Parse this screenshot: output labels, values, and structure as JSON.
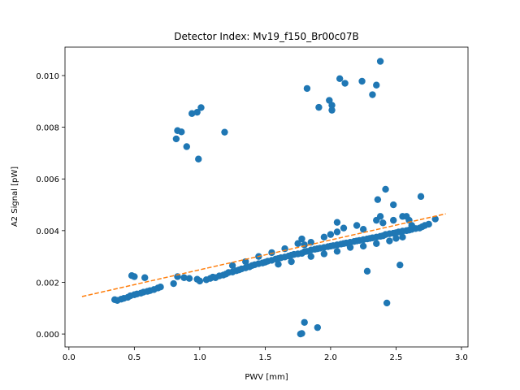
{
  "chart_data": {
    "type": "scatter",
    "title": "Detector Index: Mv19_f150_Br00c07B",
    "xlabel": "PWV [mm]",
    "ylabel": "A2 Signal [pW]",
    "xlim": [
      -0.03,
      3.05
    ],
    "ylim": [
      -0.0005,
      0.0111
    ],
    "xticks": [
      0.0,
      0.5,
      1.0,
      1.5,
      2.0,
      2.5,
      3.0
    ],
    "xtick_labels": [
      "0.0",
      "0.5",
      "1.0",
      "1.5",
      "2.0",
      "2.5",
      "3.0"
    ],
    "yticks": [
      0.0,
      0.002,
      0.004,
      0.006,
      0.008,
      0.01
    ],
    "ytick_labels": [
      "0.000",
      "0.002",
      "0.004",
      "0.006",
      "0.008",
      "0.010"
    ],
    "grid": false,
    "series": [
      {
        "name": "data",
        "kind": "scatter",
        "color": "#1f77b4",
        "points": [
          [
            0.35,
            0.00133
          ],
          [
            0.37,
            0.0013
          ],
          [
            0.4,
            0.00135
          ],
          [
            0.42,
            0.00138
          ],
          [
            0.45,
            0.00142
          ],
          [
            0.47,
            0.00148
          ],
          [
            0.5,
            0.00152
          ],
          [
            0.52,
            0.00155
          ],
          [
            0.55,
            0.00158
          ],
          [
            0.57,
            0.00162
          ],
          [
            0.6,
            0.00165
          ],
          [
            0.62,
            0.00168
          ],
          [
            0.65,
            0.00172
          ],
          [
            0.68,
            0.00178
          ],
          [
            0.7,
            0.00182
          ],
          [
            0.48,
            0.00226
          ],
          [
            0.5,
            0.00222
          ],
          [
            0.58,
            0.00218
          ],
          [
            0.83,
            0.00222
          ],
          [
            0.88,
            0.00218
          ],
          [
            0.92,
            0.00215
          ],
          [
            0.98,
            0.00212
          ],
          [
            1.0,
            0.00205
          ],
          [
            0.8,
            0.00195
          ],
          [
            1.05,
            0.0021
          ],
          [
            1.08,
            0.00215
          ],
          [
            1.1,
            0.0022
          ],
          [
            1.12,
            0.00218
          ],
          [
            1.15,
            0.00225
          ],
          [
            1.18,
            0.00228
          ],
          [
            1.2,
            0.00232
          ],
          [
            1.22,
            0.00238
          ],
          [
            1.25,
            0.0024
          ],
          [
            1.28,
            0.00245
          ],
          [
            1.3,
            0.00248
          ],
          [
            1.32,
            0.00252
          ],
          [
            1.35,
            0.00256
          ],
          [
            1.38,
            0.0026
          ],
          [
            1.4,
            0.00265
          ],
          [
            1.42,
            0.00268
          ],
          [
            1.45,
            0.00272
          ],
          [
            1.48,
            0.00275
          ],
          [
            1.5,
            0.00278
          ],
          [
            1.52,
            0.00282
          ],
          [
            1.55,
            0.00285
          ],
          [
            1.58,
            0.0029
          ],
          [
            1.6,
            0.00292
          ],
          [
            1.62,
            0.00295
          ],
          [
            1.65,
            0.00298
          ],
          [
            1.68,
            0.00302
          ],
          [
            1.7,
            0.00305
          ],
          [
            1.72,
            0.00308
          ],
          [
            1.75,
            0.0031
          ],
          [
            1.78,
            0.00312
          ],
          [
            1.8,
            0.00318
          ],
          [
            1.82,
            0.0032
          ],
          [
            1.85,
            0.00325
          ],
          [
            1.88,
            0.00328
          ],
          [
            1.9,
            0.0033
          ],
          [
            1.92,
            0.00332
          ],
          [
            1.95,
            0.00335
          ],
          [
            1.98,
            0.00338
          ],
          [
            2.0,
            0.0034
          ],
          [
            2.02,
            0.00342
          ],
          [
            2.05,
            0.00345
          ],
          [
            2.08,
            0.00348
          ],
          [
            2.1,
            0.0035
          ],
          [
            2.12,
            0.00352
          ],
          [
            2.15,
            0.00355
          ],
          [
            2.18,
            0.00358
          ],
          [
            2.2,
            0.0036
          ],
          [
            2.22,
            0.00362
          ],
          [
            2.25,
            0.00365
          ],
          [
            2.28,
            0.00368
          ],
          [
            2.3,
            0.0037
          ],
          [
            2.32,
            0.00372
          ],
          [
            2.35,
            0.00375
          ],
          [
            2.38,
            0.00378
          ],
          [
            2.4,
            0.0038
          ],
          [
            2.42,
            0.00385
          ],
          [
            2.45,
            0.00388
          ],
          [
            2.48,
            0.0039
          ],
          [
            2.5,
            0.00392
          ],
          [
            2.52,
            0.00395
          ],
          [
            2.55,
            0.00398
          ],
          [
            2.58,
            0.004
          ],
          [
            2.6,
            0.00402
          ],
          [
            2.62,
            0.00405
          ],
          [
            2.65,
            0.00408
          ],
          [
            2.68,
            0.0041
          ],
          [
            2.7,
            0.00415
          ],
          [
            2.72,
            0.0042
          ],
          [
            2.75,
            0.00425
          ],
          [
            2.8,
            0.00445
          ],
          [
            1.25,
            0.00265
          ],
          [
            1.35,
            0.0028
          ],
          [
            1.45,
            0.003
          ],
          [
            1.55,
            0.00315
          ],
          [
            1.65,
            0.0033
          ],
          [
            1.75,
            0.0035
          ],
          [
            1.78,
            0.00368
          ],
          [
            1.8,
            0.00345
          ],
          [
            1.85,
            0.00355
          ],
          [
            1.95,
            0.00375
          ],
          [
            2.0,
            0.00385
          ],
          [
            2.05,
            0.00395
          ],
          [
            2.05,
            0.00432
          ],
          [
            2.1,
            0.0041
          ],
          [
            2.2,
            0.0042
          ],
          [
            2.25,
            0.00405
          ],
          [
            2.35,
            0.0044
          ],
          [
            2.38,
            0.00455
          ],
          [
            2.4,
            0.0043
          ],
          [
            2.48,
            0.0044
          ],
          [
            2.55,
            0.00455
          ],
          [
            2.6,
            0.0044
          ],
          [
            2.62,
            0.0042
          ],
          [
            1.6,
            0.0027
          ],
          [
            1.7,
            0.0028
          ],
          [
            1.85,
            0.003
          ],
          [
            1.95,
            0.0031
          ],
          [
            2.05,
            0.0032
          ],
          [
            2.15,
            0.00335
          ],
          [
            2.25,
            0.0034
          ],
          [
            2.35,
            0.0035
          ],
          [
            2.45,
            0.0036
          ],
          [
            2.5,
            0.0037
          ],
          [
            2.55,
            0.00375
          ],
          [
            2.36,
            0.0052
          ],
          [
            2.42,
            0.0056
          ],
          [
            2.48,
            0.005
          ],
          [
            2.58,
            0.00455
          ],
          [
            2.69,
            0.00532
          ],
          [
            2.53,
            0.00267
          ],
          [
            2.28,
            0.00243
          ],
          [
            2.43,
            0.0012
          ],
          [
            0.82,
            0.00755
          ],
          [
            0.83,
            0.00787
          ],
          [
            0.86,
            0.00782
          ],
          [
            0.9,
            0.00725
          ],
          [
            0.94,
            0.00853
          ],
          [
            0.98,
            0.00858
          ],
          [
            1.01,
            0.00876
          ],
          [
            0.99,
            0.00677
          ],
          [
            1.19,
            0.00781
          ],
          [
            1.82,
            0.0095
          ],
          [
            1.91,
            0.00877
          ],
          [
            1.99,
            0.00904
          ],
          [
            2.01,
            0.00885
          ],
          [
            2.01,
            0.00866
          ],
          [
            2.07,
            0.00988
          ],
          [
            2.11,
            0.0097
          ],
          [
            2.24,
            0.00978
          ],
          [
            2.32,
            0.00926
          ],
          [
            2.35,
            0.00963
          ],
          [
            2.38,
            0.01055
          ],
          [
            1.77,
            0.0
          ],
          [
            1.78,
            2e-05
          ],
          [
            1.8,
            0.00045
          ],
          [
            1.9,
            0.00025
          ]
        ]
      },
      {
        "name": "fit",
        "kind": "line",
        "style": "dashed",
        "color": "#ff7f0e",
        "x": [
          0.1,
          2.88
        ],
        "y": [
          0.00145,
          0.00465
        ]
      }
    ]
  }
}
